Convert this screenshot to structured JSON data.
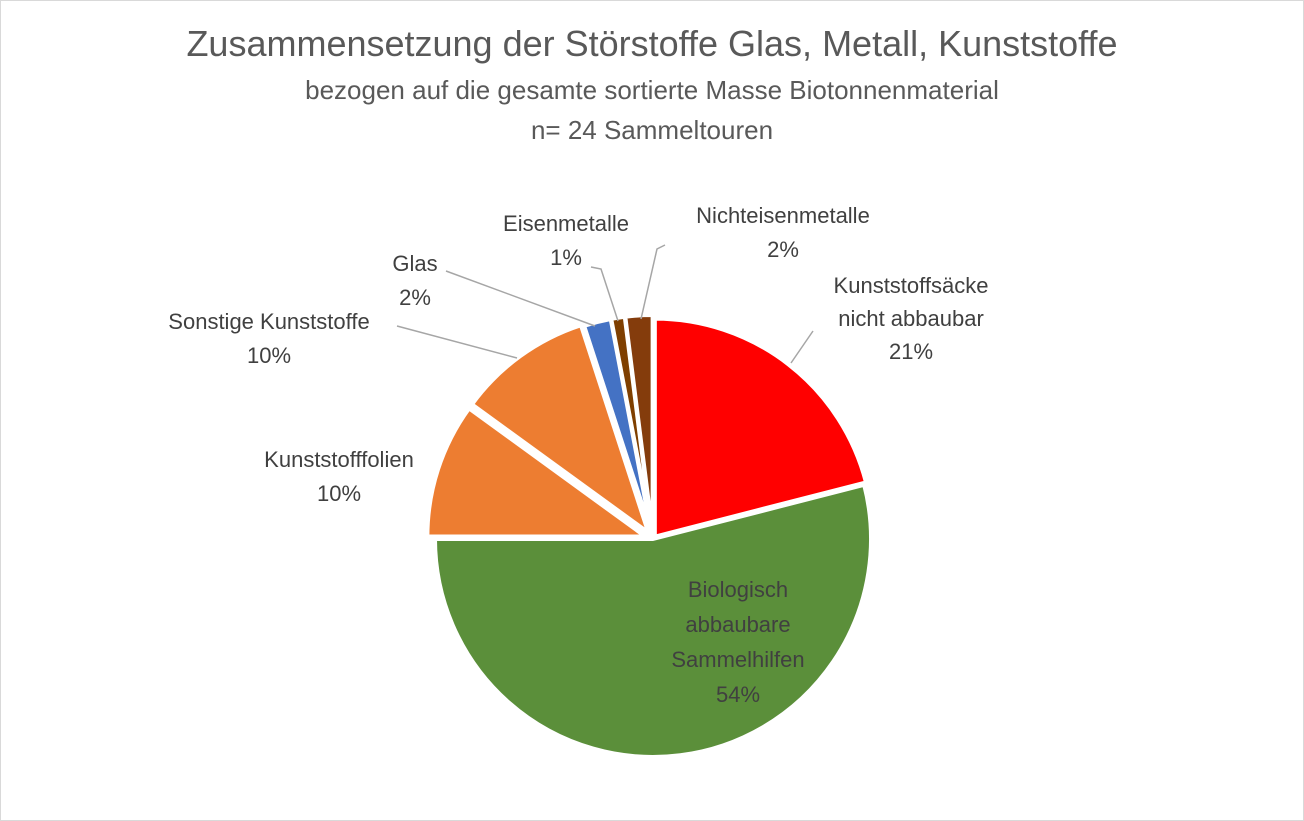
{
  "chart_data": {
    "type": "pie",
    "title": "Zusammensetzung der Störstoffe Glas, Metall, Kunststoffe",
    "subtitle": [
      "bezogen auf die gesamte sortierte Masse Biotonnenmaterial",
      "n= 24 Sammeltouren"
    ],
    "slices": [
      {
        "key": "kunststoffsaecke",
        "label": [
          "Kunststoffsäcke",
          "nicht abbaubar"
        ],
        "value": 21,
        "value_label": "21%",
        "color": "#ff0000"
      },
      {
        "key": "bio",
        "label": [
          "Biologisch",
          "abbaubare",
          "Sammelhilfen"
        ],
        "value": 54,
        "value_label": "54%",
        "color": "#5b8f3a"
      },
      {
        "key": "folien",
        "label": [
          "Kunststofffolien"
        ],
        "value": 10,
        "value_label": "10%",
        "color": "#ed7d31"
      },
      {
        "key": "sonstige",
        "label": [
          "Sonstige Kunststoffe"
        ],
        "value": 10,
        "value_label": "10%",
        "color": "#ed7d31"
      },
      {
        "key": "glas",
        "label": [
          "Glas"
        ],
        "value": 2,
        "value_label": "2%",
        "color": "#4472c4"
      },
      {
        "key": "eisen",
        "label": [
          "Eisenmetalle"
        ],
        "value": 1,
        "value_label": "1%",
        "color": "#7f3f00"
      },
      {
        "key": "nichteisen",
        "label": [
          "Nichteisenmetalle"
        ],
        "value": 2,
        "value_label": "2%",
        "color": "#843c0c"
      }
    ],
    "legend": "none"
  }
}
